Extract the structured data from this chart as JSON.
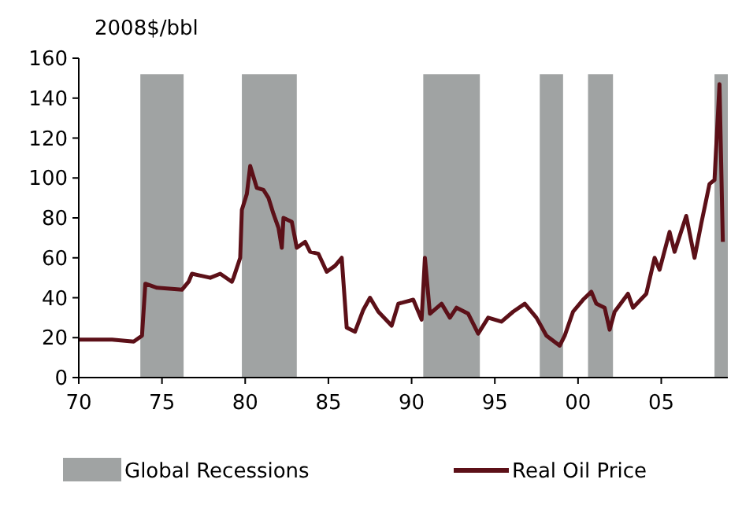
{
  "chart_data": {
    "type": "line",
    "ylabel": "2008$/bbl",
    "xlim": [
      1970,
      2009
    ],
    "ylim": [
      0,
      160
    ],
    "xticks": [
      {
        "value": 1970,
        "label": "70"
      },
      {
        "value": 1975,
        "label": "75"
      },
      {
        "value": 1980,
        "label": "80"
      },
      {
        "value": 1985,
        "label": "85"
      },
      {
        "value": 1990,
        "label": "90"
      },
      {
        "value": 1995,
        "label": "95"
      },
      {
        "value": 2000,
        "label": "00"
      },
      {
        "value": 2005,
        "label": "05"
      }
    ],
    "yticks": [
      0,
      20,
      40,
      60,
      80,
      100,
      120,
      140,
      160
    ],
    "bands": [
      {
        "axis": "x",
        "from": 1973.7,
        "to": 1976.3,
        "label": "Global Recessions",
        "color": "#a0a3a3"
      },
      {
        "axis": "x",
        "from": 1979.8,
        "to": 1983.1,
        "color": "#a0a3a3"
      },
      {
        "axis": "x",
        "from": 1990.7,
        "to": 1994.1,
        "color": "#a0a3a3"
      },
      {
        "axis": "x",
        "from": 1997.7,
        "to": 1999.1,
        "color": "#a0a3a3"
      },
      {
        "axis": "x",
        "from": 2000.6,
        "to": 2002.1,
        "color": "#a0a3a3"
      },
      {
        "axis": "x",
        "from": 2008.2,
        "to": 2009,
        "color": "#a0a3a3"
      }
    ],
    "series": [
      {
        "name": "Real Oil Price",
        "color": "#5c1018",
        "x": [
          1970,
          1971,
          1972,
          1973.3,
          1973.8,
          1974.0,
          1974.7,
          1976.2,
          1976.6,
          1976.8,
          1977.9,
          1978.5,
          1979.2,
          1979.3,
          1979.7,
          1979.8,
          1980.1,
          1980.3,
          1980.7,
          1981.1,
          1981.4,
          1981.7,
          1982.0,
          1982.2,
          1982.3,
          1982.8,
          1983.1,
          1983.6,
          1983.9,
          1984.4,
          1984.9,
          1985.4,
          1985.8,
          1986.1,
          1986.6,
          1987.1,
          1987.5,
          1988.0,
          1988.8,
          1989.2,
          1990.1,
          1990.6,
          1990.8,
          1991.1,
          1991.8,
          1992.3,
          1992.7,
          1993.4,
          1994.0,
          1994.6,
          1995.4,
          1996.1,
          1996.8,
          1997.5,
          1998.1,
          1998.9,
          1999.2,
          1999.7,
          2000.3,
          2000.8,
          2001.1,
          2001.6,
          2001.9,
          2002.2,
          2003.0,
          2003.3,
          2004.1,
          2004.6,
          2004.9,
          2005.5,
          2005.8,
          2006.5,
          2007.0,
          2007.4,
          2007.9,
          2008.2,
          2008.5,
          2008.7
        ],
        "values": [
          19,
          19,
          19,
          18,
          21,
          47,
          45,
          44,
          48,
          52,
          50,
          52,
          48,
          50,
          60,
          84,
          92,
          106,
          95,
          94,
          90,
          82,
          75,
          65,
          80,
          78,
          65,
          68,
          63,
          62,
          53,
          56,
          60,
          25,
          23,
          34,
          40,
          33,
          26,
          37,
          39,
          29,
          60,
          32,
          37,
          30,
          35,
          32,
          22,
          30,
          28,
          33,
          37,
          30,
          21,
          16,
          21,
          33,
          39,
          43,
          37,
          35,
          24,
          33,
          42,
          35,
          42,
          60,
          54,
          73,
          63,
          81,
          60,
          77,
          97,
          99,
          147,
          68
        ]
      }
    ],
    "legend": "bottom"
  }
}
